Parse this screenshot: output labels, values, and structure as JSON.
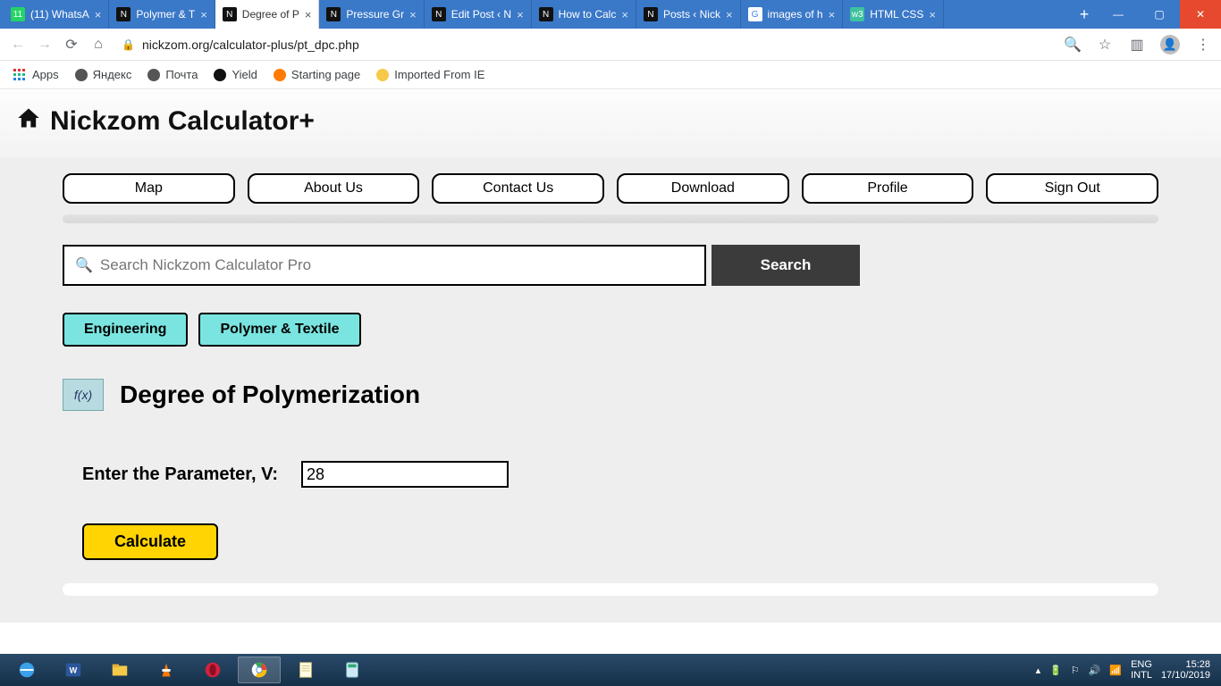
{
  "window": {
    "tabs": [
      {
        "label": "(11) WhatsA",
        "active": false,
        "favbg": "#25d366",
        "favfg": "#fff",
        "favtxt": "11"
      },
      {
        "label": "Polymer & T",
        "active": false,
        "favbg": "#111",
        "favfg": "#fff",
        "favtxt": "N"
      },
      {
        "label": "Degree of P",
        "active": true,
        "favbg": "#111",
        "favfg": "#fff",
        "favtxt": "N"
      },
      {
        "label": "Pressure Gr",
        "active": false,
        "favbg": "#111",
        "favfg": "#fff",
        "favtxt": "N"
      },
      {
        "label": "Edit Post ‹ N",
        "active": false,
        "favbg": "#111",
        "favfg": "#fff",
        "favtxt": "N"
      },
      {
        "label": "How to Calc",
        "active": false,
        "favbg": "#111",
        "favfg": "#fff",
        "favtxt": "N"
      },
      {
        "label": "Posts ‹ Nick",
        "active": false,
        "favbg": "#111",
        "favfg": "#fff",
        "favtxt": "N"
      },
      {
        "label": "images of h",
        "active": false,
        "favbg": "#fff",
        "favfg": "#4285f4",
        "favtxt": "G"
      },
      {
        "label": "HTML CSS",
        "active": false,
        "favbg": "#3cc29e",
        "favfg": "#fff",
        "favtxt": "w3"
      }
    ]
  },
  "omnibox": {
    "url": "nickzom.org/calculator-plus/pt_dpc.php"
  },
  "bookmarks": {
    "items": [
      {
        "label": "Apps",
        "iconbg": "transparent"
      },
      {
        "label": "Яндекс",
        "iconbg": "#555"
      },
      {
        "label": "Почта",
        "iconbg": "#555"
      },
      {
        "label": "Yield",
        "iconbg": "#111"
      },
      {
        "label": "Starting page",
        "iconbg": "#ff7a00"
      },
      {
        "label": "Imported From IE",
        "iconbg": "#f7c948"
      }
    ]
  },
  "page": {
    "site_title": "Nickzom Calculator+",
    "nav": [
      "Map",
      "About Us",
      "Contact Us",
      "Download",
      "Profile",
      "Sign Out"
    ],
    "search": {
      "placeholder": "Search Nickzom Calculator Pro",
      "button": "Search"
    },
    "crumbs": [
      "Engineering",
      "Polymer & Textile"
    ],
    "fx_label": "f(x)",
    "section_title": "Degree of Polymerization",
    "form": {
      "label": "Enter the Parameter, V:",
      "value": "28"
    },
    "calculate": "Calculate"
  },
  "tray": {
    "lang1": "ENG",
    "lang2": "INTL",
    "time": "15:28",
    "date": "17/10/2019"
  }
}
